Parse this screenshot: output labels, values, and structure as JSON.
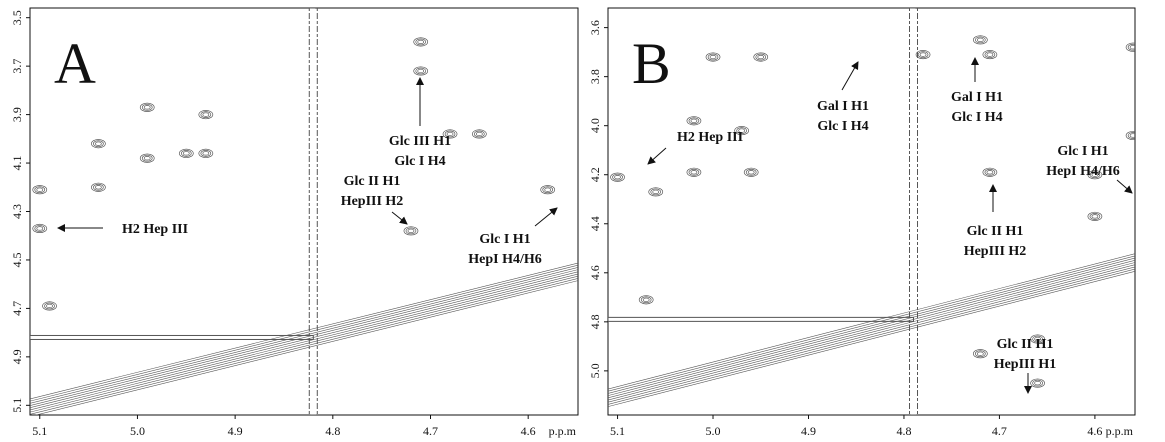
{
  "chart_data": [
    {
      "type": "contour",
      "panel_label": "A",
      "x_label": "p.p.m",
      "xlim": [
        5.11,
        4.549
      ],
      "ylim": [
        3.46,
        5.14
      ],
      "xticks": [
        5.1,
        {
          "value": 5,
          "label": "5.0"
        },
        4.9,
        4.8,
        4.7,
        4.6
      ],
      "yticks": [
        3.5,
        3.7,
        3.9,
        4.1,
        4.3,
        4.5,
        4.7,
        4.9,
        5.1
      ],
      "water_line": 4.82,
      "color": "#555555",
      "peaks": {
        "x": [
          4.93,
          4.99,
          4.99,
          4.95,
          4.93,
          5.04,
          5.04,
          5.1,
          5.1,
          4.72,
          4.71,
          4.71,
          4.58,
          4.65,
          4.68,
          5.09
        ],
        "y": [
          3.9,
          3.87,
          4.08,
          4.06,
          4.06,
          4.02,
          4.2,
          4.21,
          4.37,
          4.38,
          3.6,
          3.72,
          4.21,
          3.98,
          3.98,
          4.69
        ]
      },
      "annotations": [
        [
          "Glc III H1",
          "Glc I H4"
        ],
        [
          "Glc II H1",
          "HepIII H2"
        ],
        [
          "H2 Hep III"
        ],
        [
          "Glc I H1",
          "HepI H4/H6"
        ]
      ]
    },
    {
      "type": "contour",
      "panel_label": "B",
      "x_label": "p.p.m",
      "xlim": [
        5.11,
        4.558
      ],
      "ylim": [
        3.52,
        5.18
      ],
      "xticks": [
        5.1,
        {
          "value": 5,
          "label": "5.0"
        },
        4.9,
        4.8,
        4.7,
        4.6
      ],
      "yticks": [
        3.6,
        3.8,
        {
          "value": 4,
          "label": "4.0"
        },
        4.2,
        4.4,
        4.6,
        4.8,
        {
          "value": 5,
          "label": "5.0"
        }
      ],
      "water_line": 4.79,
      "color": "#555555",
      "peaks": {
        "x": [
          5.02,
          4.97,
          5.06,
          5.1,
          5.02,
          4.96,
          5.0,
          4.95,
          4.72,
          4.71,
          4.78,
          4.71,
          4.6,
          4.56,
          4.56,
          4.6,
          4.66,
          4.72,
          4.66,
          5.07
        ],
        "y": [
          3.98,
          4.02,
          4.27,
          4.21,
          4.19,
          4.19,
          3.72,
          3.72,
          3.65,
          3.71,
          3.71,
          4.19,
          4.2,
          3.68,
          4.04,
          4.37,
          4.87,
          4.93,
          5.05,
          4.71
        ]
      },
      "annotations": [
        [
          "H2 Hep III"
        ],
        [
          "Gal I H1",
          "Glc I H4"
        ],
        [
          "Gal I H1",
          "Glc I H4"
        ],
        [
          "Glc I H1",
          "HepI H4/H6"
        ],
        [
          "Glc II H1",
          "HepIII H2"
        ],
        [
          "Glc II H1",
          "HepIII H1"
        ]
      ]
    }
  ]
}
